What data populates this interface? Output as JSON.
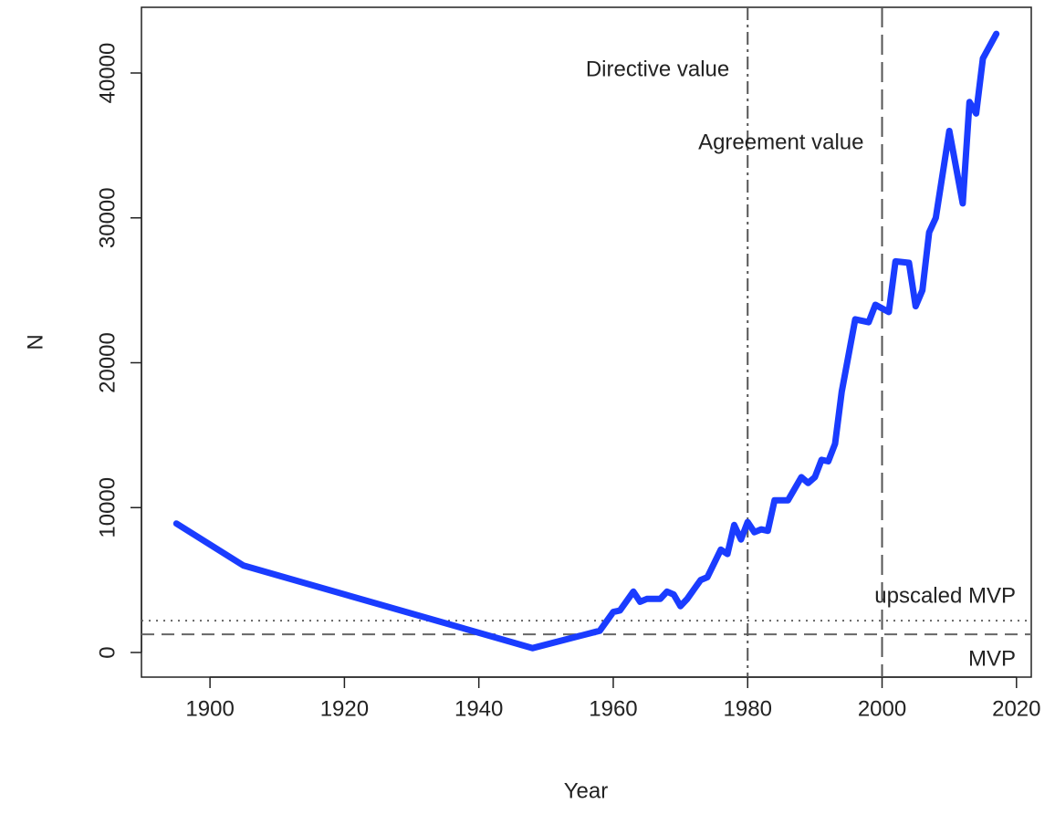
{
  "chart_data": {
    "type": "line",
    "x_label": "Year",
    "y_label": "N",
    "x": [
      1895,
      1905,
      1948,
      1958,
      1960,
      1961,
      1963,
      1964,
      1965,
      1967,
      1968,
      1969,
      1970,
      1971,
      1973,
      1974,
      1976,
      1977,
      1978,
      1979,
      1980,
      1981,
      1982,
      1983,
      1984,
      1986,
      1988,
      1989,
      1990,
      1991,
      1992,
      1993,
      1994,
      1996,
      1998,
      1999,
      2001,
      2002,
      2004,
      2005,
      2006,
      2007,
      2008,
      2010,
      2012,
      2013,
      2014,
      2015,
      2017
    ],
    "values": [
      8900,
      6000,
      300,
      1500,
      2800,
      2900,
      4200,
      3500,
      3700,
      3700,
      4200,
      4000,
      3200,
      3700,
      5000,
      5200,
      7100,
      6800,
      8800,
      7800,
      9000,
      8300,
      8500,
      8400,
      10500,
      10500,
      12100,
      11700,
      12100,
      13300,
      13200,
      14400,
      18000,
      23000,
      22800,
      24000,
      23500,
      27000,
      26900,
      23900,
      25000,
      29000,
      30000,
      36000,
      31000,
      38000,
      37200,
      41000,
      42700
    ],
    "color": "#1a3cff",
    "xlim": [
      1889.8,
      2022.2
    ],
    "ylim": [
      -1700,
      44535
    ],
    "xticks": [
      1900,
      1920,
      1940,
      1960,
      1980,
      2000,
      2020
    ],
    "yticks": [
      0,
      10000,
      20000,
      30000,
      40000
    ],
    "hlines": [
      {
        "value": 2200,
        "label": "upscaled MVP",
        "style": "dotted"
      },
      {
        "value": 1250,
        "label": "MVP",
        "style": "dashed"
      }
    ],
    "vlines": [
      {
        "value": 1980,
        "label": "Directive value",
        "style": "dashdot"
      },
      {
        "value": 2000,
        "label": "Agreement value",
        "style": "longdash"
      }
    ]
  }
}
